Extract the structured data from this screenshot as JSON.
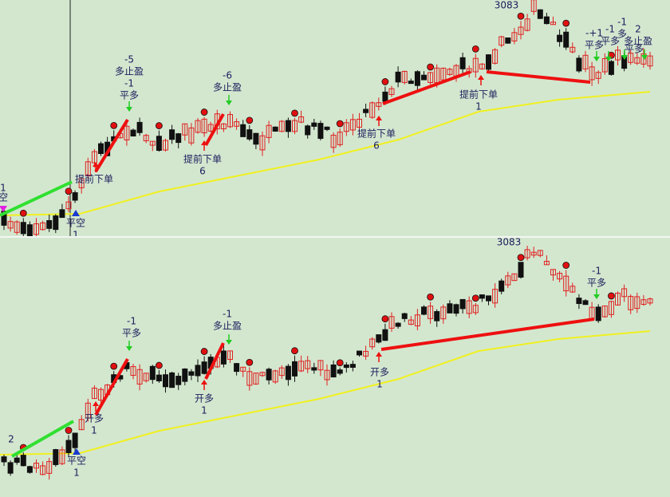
{
  "top_panel": {
    "peak_label": "3083",
    "annotations": [
      [
        "1",
        "空"
      ],
      [
        "提前下单"
      ],
      [
        "平空",
        "1"
      ],
      [
        "-5",
        "多止盈",
        "-1",
        "平多"
      ],
      [
        "提前下单",
        "6"
      ],
      [
        "-6",
        "多止盈"
      ],
      [
        "提前下单",
        "6"
      ],
      [
        "提前下单",
        "1"
      ],
      [
        "-+1",
        "平多"
      ],
      [
        "-1",
        "平多"
      ],
      [
        "-1",
        "多"
      ],
      [
        "2",
        "多止盈"
      ],
      [
        "平多"
      ]
    ]
  },
  "bottom_panel": {
    "peak_label": "3083",
    "annotations": [
      [
        "-1",
        "平多"
      ],
      [
        "-1",
        "多止盈"
      ],
      [
        "开多",
        "1"
      ],
      [
        "开多",
        "1"
      ],
      [
        "平空",
        "1"
      ],
      [
        "开多",
        "1"
      ],
      [
        "-1",
        "平多"
      ],
      [
        "2"
      ]
    ]
  }
}
